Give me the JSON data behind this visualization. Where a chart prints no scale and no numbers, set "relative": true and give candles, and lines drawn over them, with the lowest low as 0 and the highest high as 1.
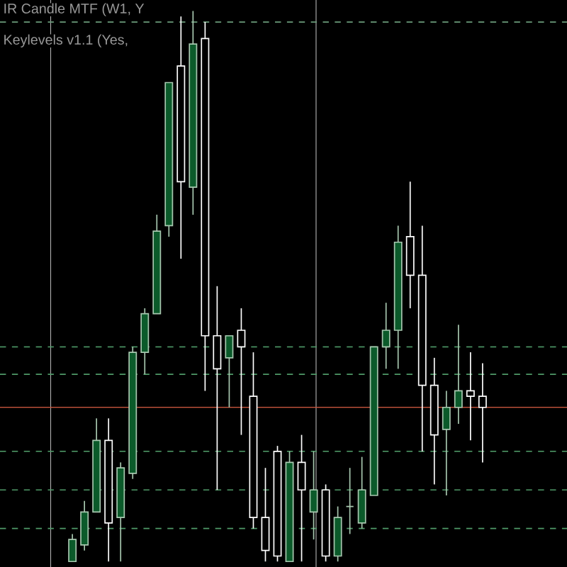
{
  "chart_data": {
    "type": "candlestick",
    "relative": true,
    "categories": [
      null,
      null,
      null,
      null,
      null,
      null,
      null,
      null,
      null,
      null,
      null,
      null,
      null,
      null,
      null,
      null,
      null,
      null,
      null,
      null,
      null,
      null,
      null,
      null,
      null,
      null,
      null,
      null,
      null,
      null,
      null,
      null,
      null,
      null,
      null
    ],
    "ohlc": [
      [
        0,
        0.05,
        0,
        0.04
      ],
      [
        0.03,
        0.11,
        0.02,
        0.09
      ],
      [
        0.09,
        0.26,
        0.09,
        0.22
      ],
      [
        0.22,
        0.26,
        0,
        0.07
      ],
      [
        0.08,
        0.18,
        0,
        0.17
      ],
      [
        0.16,
        0.39,
        0.15,
        0.38
      ],
      [
        0.38,
        0.46,
        0.34,
        0.45
      ],
      [
        0.45,
        0.63,
        0.45,
        0.6
      ],
      [
        0.61,
        0.87,
        0.59,
        0.87
      ],
      [
        0.9,
        0.99,
        0.55,
        0.69
      ],
      [
        0.68,
        1,
        0.63,
        0.94
      ],
      [
        0.95,
        0.98,
        0.31,
        0.41
      ],
      [
        0.41,
        0.5,
        0.13,
        0.35
      ],
      [
        0.37,
        0.41,
        0.28,
        0.41
      ],
      [
        0.42,
        0.46,
        0.23,
        0.39
      ],
      [
        0.3,
        0.38,
        0.06,
        0.08
      ],
      [
        0.08,
        0.17,
        0,
        0.02
      ],
      [
        0.2,
        0.21,
        0,
        0.01
      ],
      [
        0,
        0.2,
        0,
        0.18
      ],
      [
        0.18,
        0.23,
        0,
        0.13
      ],
      [
        0.09,
        0.2,
        0.04,
        0.13
      ],
      [
        0.13,
        0.14,
        0,
        0.01
      ],
      [
        0.01,
        0.1,
        0,
        0.08
      ],
      [
        0.1,
        0.17,
        0.05,
        0.1
      ],
      [
        0.07,
        0.19,
        0.06,
        0.13
      ],
      [
        0.12,
        0.39,
        0.12,
        0.39
      ],
      [
        0.39,
        0.47,
        0.35,
        0.42
      ],
      [
        0.42,
        0.61,
        0.35,
        0.58
      ],
      [
        0.59,
        0.69,
        0.46,
        0.52
      ],
      [
        0.52,
        0.61,
        0.2,
        0.32
      ],
      [
        0.32,
        0.37,
        0.14,
        0.23
      ],
      [
        0.24,
        0.31,
        0.12,
        0.28
      ],
      [
        0.28,
        0.43,
        0.25,
        0.31
      ],
      [
        0.31,
        0.38,
        0.22,
        0.3
      ],
      [
        0.3,
        0.36,
        0.18,
        0.28
      ]
    ],
    "ref_lines": [
      {
        "axis": "y",
        "value": 0.28,
        "color": "#c8553d",
        "line_style": "solid"
      },
      {
        "axis": "y",
        "value": 0.98,
        "color": "#6a9a7a",
        "line_style": "dashed"
      },
      {
        "axis": "y",
        "value": 0.39,
        "color": "#4f9a68",
        "line_style": "dashed"
      },
      {
        "axis": "y",
        "value": 0.34,
        "color": "#4f9a68",
        "line_style": "dashed"
      },
      {
        "axis": "y",
        "value": 0.2,
        "color": "#4f9a68",
        "line_style": "dashed"
      },
      {
        "axis": "y",
        "value": 0.13,
        "color": "#4f9a68",
        "line_style": "dashed"
      },
      {
        "axis": "y",
        "value": 0.06,
        "color": "#4f9a68",
        "line_style": "dashed"
      }
    ],
    "annotations": [
      "IR Candle MTF (W1, Y",
      "Keylevels v1.1 (Yes,"
    ]
  }
}
